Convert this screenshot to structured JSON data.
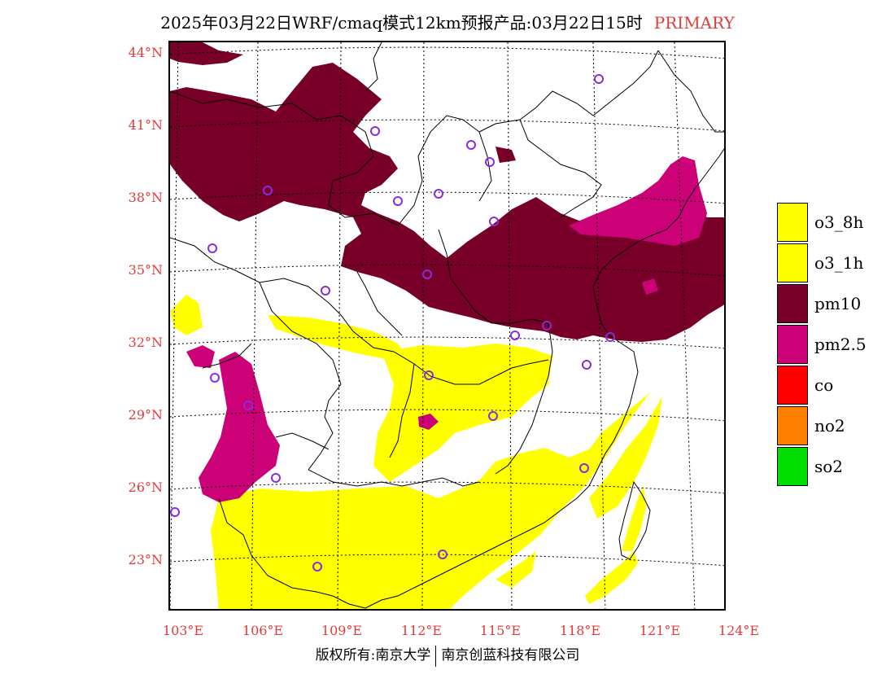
{
  "title": {
    "main": "2025年03月22日WRF/cmaq模式12km预报产品:03月22日15时",
    "tag": "PRIMARY"
  },
  "map": {
    "latitude_labels": [
      "44°N",
      "41°N",
      "38°N",
      "35°N",
      "32°N",
      "29°N",
      "26°N",
      "23°N"
    ],
    "longitude_labels": [
      "103°E",
      "106°E",
      "109°E",
      "112°E",
      "115°E",
      "118°E",
      "121°E",
      "124°E"
    ],
    "colors": {
      "o3_8h": "#ffff00",
      "o3_1h": "#ffff00",
      "pm10": "#780028",
      "pm2_5": "#cc0077",
      "co": "#ff0000",
      "no2": "#ff8000",
      "so2": "#00dd00",
      "station": "#8a2be2"
    }
  },
  "legend": [
    {
      "label": "o3_8h",
      "color": "#ffff00"
    },
    {
      "label": "o3_1h",
      "color": "#ffff00"
    },
    {
      "label": "pm10",
      "color": "#780028"
    },
    {
      "label": "pm2.5",
      "color": "#cc0077"
    },
    {
      "label": "co",
      "color": "#ff0000"
    },
    {
      "label": "no2",
      "color": "#ff8000"
    },
    {
      "label": "so2",
      "color": "#00dd00"
    }
  ],
  "footer": {
    "left": "版权所有:南京大学",
    "right": "南京创蓝科技有限公司"
  }
}
